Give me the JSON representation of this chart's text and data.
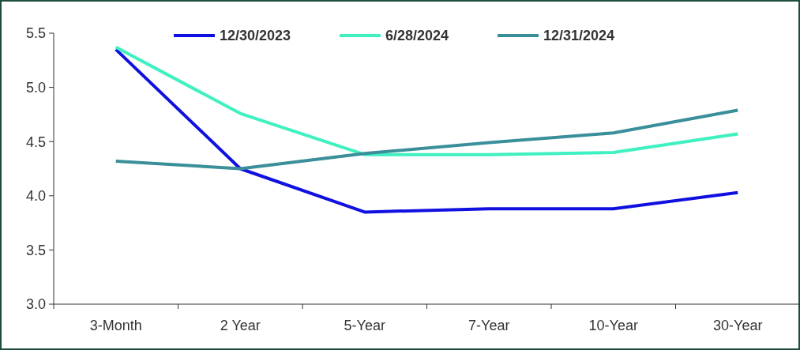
{
  "chart_data": {
    "type": "line",
    "categories": [
      "3-Month",
      "2 Year",
      "5-Year",
      "7-Year",
      "10-Year",
      "30-Year"
    ],
    "series": [
      {
        "name": "12/30/2023",
        "color": "#1010e0",
        "values": [
          5.35,
          4.25,
          3.85,
          3.88,
          3.88,
          4.03
        ]
      },
      {
        "name": "6/28/2024",
        "color": "#3ff0c0",
        "values": [
          5.37,
          4.76,
          4.38,
          4.38,
          4.4,
          4.57
        ]
      },
      {
        "name": "12/31/2024",
        "color": "#3a8f9a",
        "values": [
          4.32,
          4.25,
          4.39,
          4.49,
          4.58,
          4.79
        ]
      }
    ],
    "ylim": [
      3.0,
      5.5
    ],
    "yticks": [
      {
        "value": 3.0,
        "label": "3.0"
      },
      {
        "value": 3.5,
        "label": "3.5"
      },
      {
        "value": 4.0,
        "label": "4.0"
      },
      {
        "value": 4.5,
        "label": "4.5"
      },
      {
        "value": 5.0,
        "label": "5.0"
      },
      {
        "value": 5.5,
        "label": "5.5"
      }
    ],
    "grid": false,
    "legend": "top",
    "marker": "none",
    "line_style": "solid"
  }
}
